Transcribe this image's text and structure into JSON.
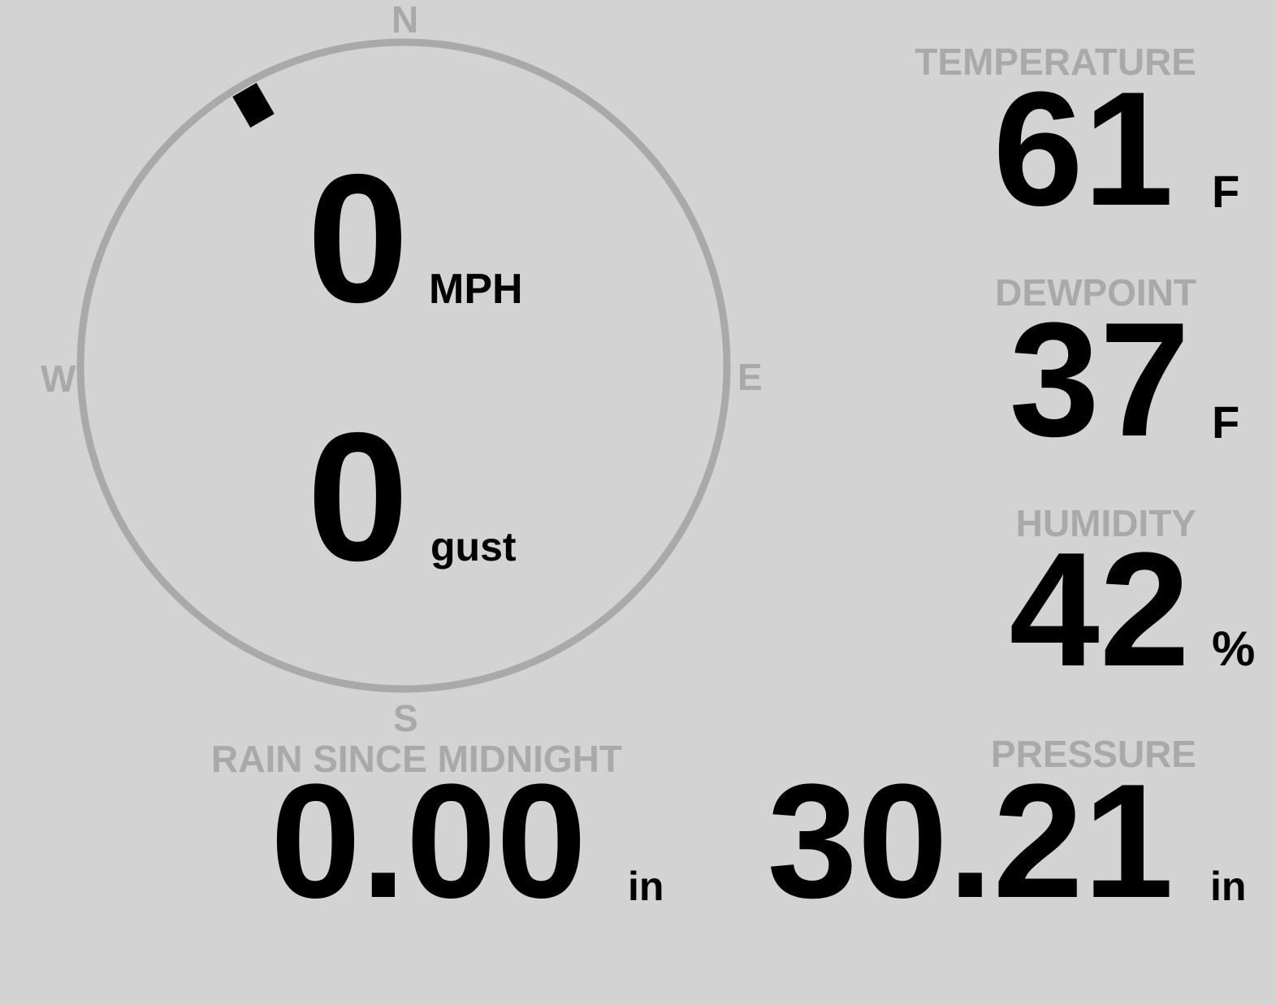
{
  "colors": {
    "background": "#d3d3d3",
    "label": "#a9a9a9",
    "value": "#000000"
  },
  "wind": {
    "compass": {
      "north": "N",
      "east": "E",
      "south": "S",
      "west": "W"
    },
    "direction_degrees": 330,
    "speed": "0",
    "speed_unit": "MPH",
    "gust": "0",
    "gust_unit": "gust"
  },
  "temperature": {
    "label": "TEMPERATURE",
    "value": "61",
    "unit": "F"
  },
  "dewpoint": {
    "label": "DEWPOINT",
    "value": "37",
    "unit": "F"
  },
  "humidity": {
    "label": "HUMIDITY",
    "value": "42",
    "unit": "%"
  },
  "rain": {
    "label": "RAIN SINCE MIDNIGHT",
    "value": "0.00",
    "unit": "in"
  },
  "pressure": {
    "label": "PRESSURE",
    "value": "30.21",
    "unit": "in"
  }
}
